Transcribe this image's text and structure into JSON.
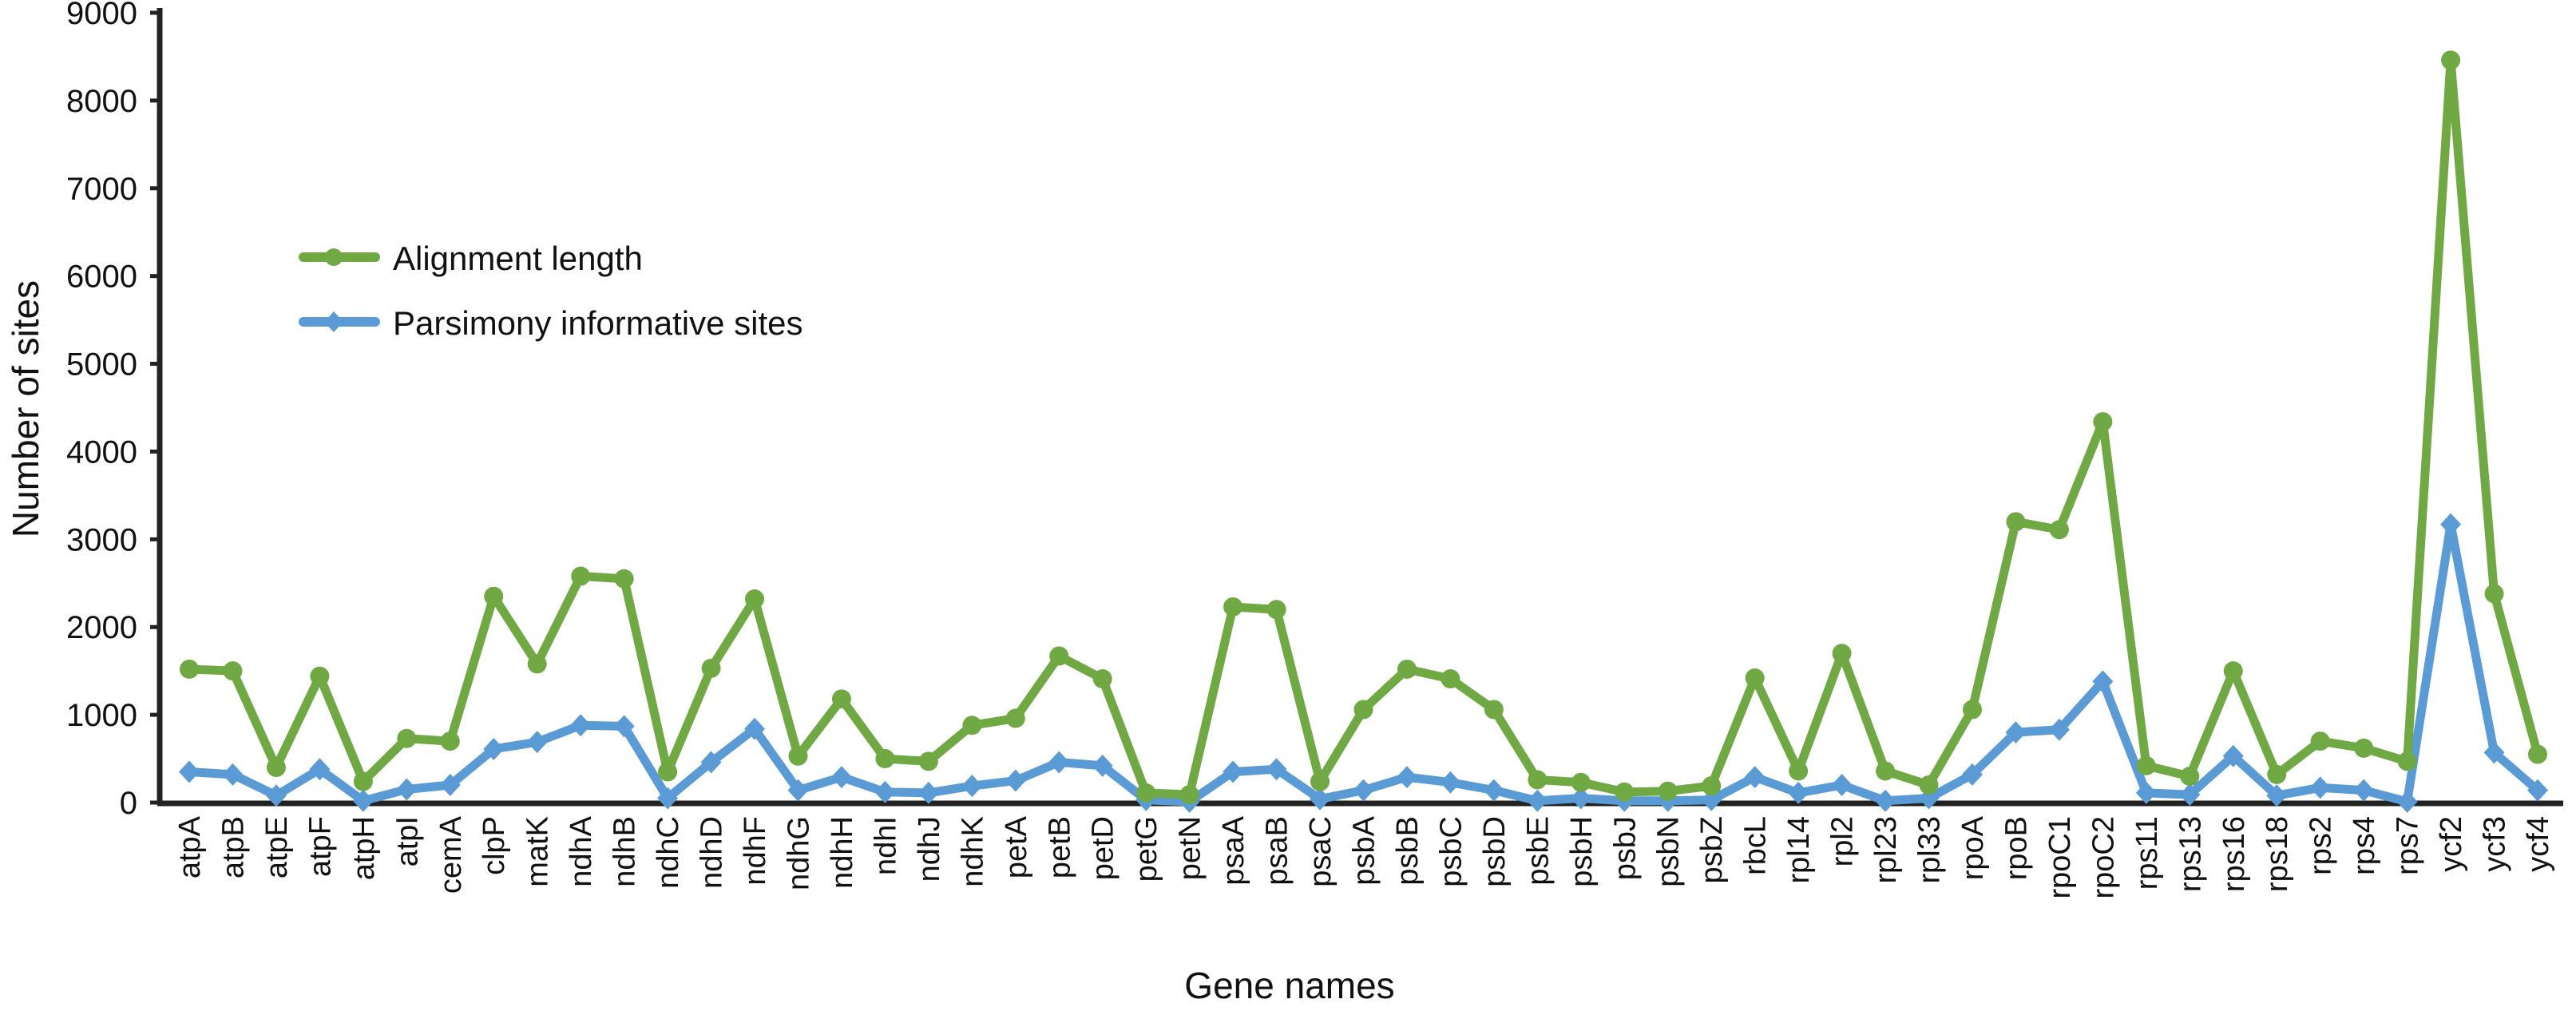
{
  "chart_data": {
    "type": "line",
    "title": "",
    "xlabel": "Gene names",
    "ylabel": "Number of sites",
    "ylim": [
      0,
      9000
    ],
    "yticks": [
      0,
      1000,
      2000,
      3000,
      4000,
      5000,
      6000,
      7000,
      8000,
      9000
    ],
    "grid": false,
    "legend_position": "upper-left",
    "categories": [
      "atpA",
      "atpB",
      "atpE",
      "atpF",
      "atpH",
      "atpI",
      "cemA",
      "clpP",
      "matK",
      "ndhA",
      "ndhB",
      "ndhC",
      "ndhD",
      "ndhF",
      "ndhG",
      "ndhH",
      "ndhI",
      "ndhJ",
      "ndhK",
      "petA",
      "petB",
      "petD",
      "petG",
      "petN",
      "psaA",
      "psaB",
      "psaC",
      "psbA",
      "psbB",
      "psbC",
      "psbD",
      "psbE",
      "psbH",
      "psbJ",
      "psbN",
      "psbZ",
      "rbcL",
      "rpl14",
      "rpl2",
      "rpl23",
      "rpl33",
      "rpoA",
      "rpoB",
      "rpoC1",
      "rpoC2",
      "rps11",
      "rps13",
      "rps16",
      "rps18",
      "rps2",
      "rps4",
      "rps7",
      "ycf2",
      "ycf3",
      "ycf4"
    ],
    "series": [
      {
        "name": "Alignment length",
        "color": "#70a844",
        "marker": "circle",
        "values": [
          1520,
          1500,
          400,
          1440,
          240,
          730,
          700,
          2350,
          1580,
          2580,
          2550,
          350,
          1530,
          2320,
          530,
          1180,
          500,
          470,
          880,
          960,
          1670,
          1410,
          110,
          90,
          2230,
          2200,
          240,
          1060,
          1520,
          1410,
          1060,
          260,
          230,
          120,
          130,
          190,
          1420,
          360,
          1700,
          360,
          200,
          1060,
          3200,
          3110,
          4340,
          420,
          300,
          1500,
          320,
          700,
          620,
          470,
          8460,
          2380,
          550
        ]
      },
      {
        "name": "Parsimony informative sites",
        "color": "#5b9bd5",
        "marker": "diamond",
        "values": [
          350,
          320,
          80,
          380,
          20,
          150,
          200,
          610,
          690,
          880,
          870,
          50,
          460,
          840,
          140,
          290,
          120,
          110,
          190,
          250,
          460,
          420,
          30,
          10,
          350,
          380,
          40,
          140,
          290,
          230,
          140,
          20,
          50,
          20,
          20,
          30,
          290,
          110,
          200,
          20,
          50,
          320,
          800,
          830,
          1380,
          110,
          90,
          530,
          80,
          170,
          140,
          10,
          3170,
          570,
          140
        ]
      }
    ]
  }
}
